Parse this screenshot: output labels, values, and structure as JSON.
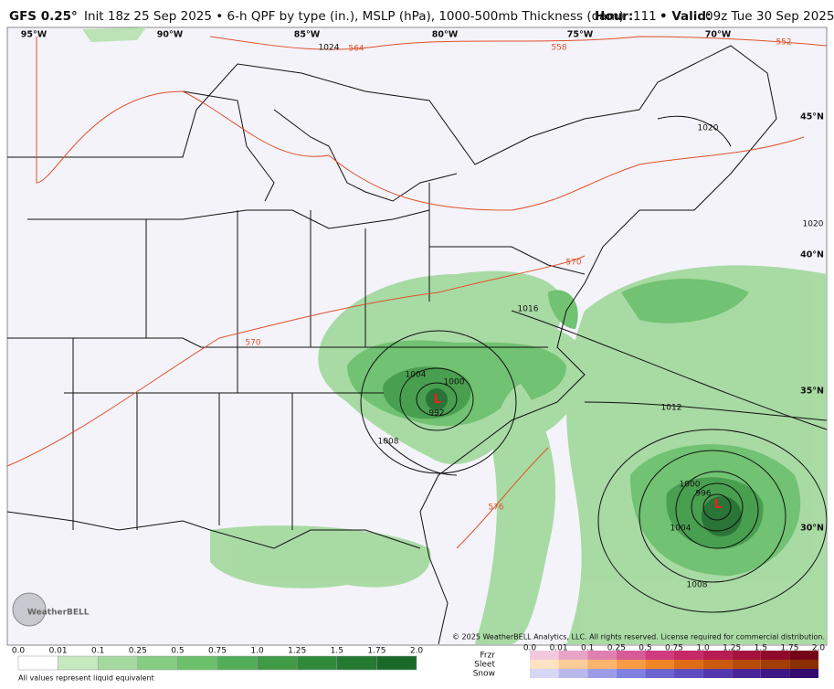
{
  "header": {
    "model": "GFS 0.25°",
    "init": "Init 18z 25 Sep 2025 • 6-h QPF by type (in.), MSLP (hPa), 1000-500mb Thickness (dam)",
    "hour_label": "Hour:",
    "hour": "111",
    "valid_label": "• Valid:",
    "valid": "09z Tue 30 Sep 2025"
  },
  "map": {
    "lon_labels": [
      "95°W",
      "90°W",
      "85°W",
      "80°W",
      "75°W",
      "70°W"
    ],
    "lat_labels": [
      "45°N",
      "40°N",
      "35°N",
      "30°N"
    ],
    "isobar_labels": [
      "1024",
      "1020",
      "1020",
      "1016",
      "1004",
      "1000",
      "992",
      "1008",
      "1012",
      "1000",
      "996",
      "1004",
      "1008"
    ],
    "thickness_labels": [
      "564",
      "558",
      "552",
      "570",
      "570",
      "576"
    ],
    "lows": [
      "L",
      "L"
    ]
  },
  "copyright": "© 2025 WeatherBELL Analytics, LLC. All rights reserved. License required for commercial distribution.",
  "logo": "WeatherBELL",
  "legend": {
    "rain_ticks": [
      "0.0",
      "0.01",
      "0.1",
      "0.25",
      "0.5",
      "0.75",
      "1.0",
      "1.25",
      "1.5",
      "1.75",
      "2.0"
    ],
    "note": "All values represent liquid equivalent",
    "types": [
      "Frzr",
      "Sleet",
      "Snow"
    ],
    "mixed_ticks": [
      "0.0",
      "0.01",
      "0.1",
      "0.25",
      "0.5",
      "0.75",
      "1.0",
      "1.25",
      "1.5",
      "1.75",
      "2.0"
    ]
  }
}
